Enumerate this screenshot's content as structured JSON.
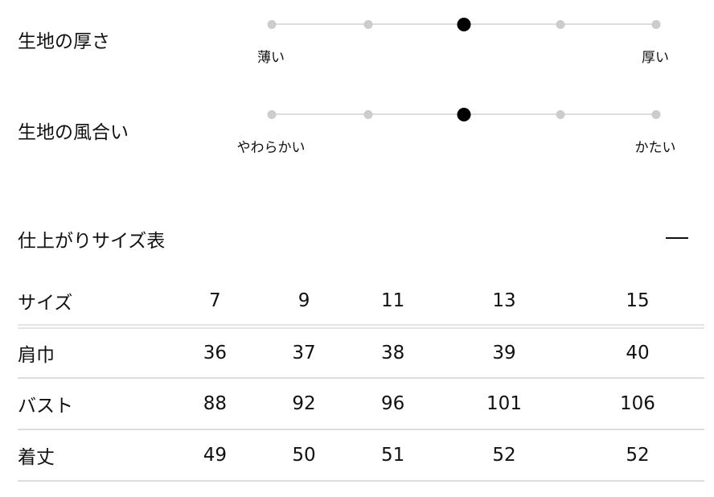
{
  "attributes": [
    {
      "title": "生地の厚さ",
      "min_label": "薄い",
      "max_label": "厚い",
      "steps": 5,
      "selected": 3
    },
    {
      "title": "生地の風合い",
      "min_label": "やわらかい",
      "max_label": "かたい",
      "steps": 5,
      "selected": 3
    }
  ],
  "size_table": {
    "title": "仕上がりサイズ表",
    "toggle_icon": "minus-icon",
    "toggle_symbol": "—",
    "headers": [
      "サイズ",
      "7",
      "9",
      "11",
      "13",
      "15"
    ],
    "rows": [
      [
        "肩巾",
        "36",
        "37",
        "38",
        "39",
        "40"
      ],
      [
        "バスト",
        "88",
        "92",
        "96",
        "101",
        "106"
      ],
      [
        "着丈",
        "49",
        "50",
        "51",
        "52",
        "52"
      ]
    ]
  }
}
